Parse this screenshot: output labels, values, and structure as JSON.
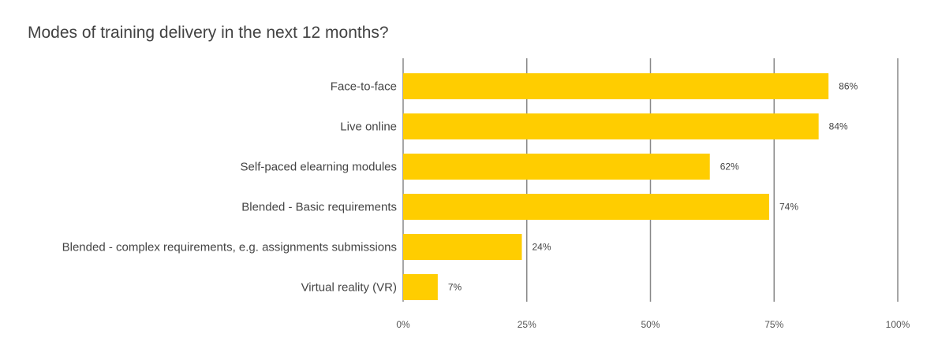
{
  "chart_data": {
    "type": "bar",
    "orientation": "horizontal",
    "title": "Modes of training delivery in the next 12 months?",
    "categories": [
      "Face-to-face",
      "Live online",
      "Self-paced elearning modules",
      "Blended - Basic requirements",
      "Blended - complex requirements, e.g. assignments submissions",
      "Virtual reality (VR)"
    ],
    "values": [
      86,
      84,
      62,
      74,
      24,
      7
    ],
    "data_labels": [
      "86%",
      "84%",
      "62%",
      "74%",
      "24%",
      "7%"
    ],
    "xlim": [
      0,
      100
    ],
    "x_ticks": [
      0,
      25,
      50,
      75,
      100
    ],
    "x_tick_labels": [
      "0%",
      "25%",
      "50%",
      "75%",
      "100%"
    ],
    "grid": true,
    "bar_color": "#ffcd00",
    "xlabel": "",
    "ylabel": ""
  }
}
